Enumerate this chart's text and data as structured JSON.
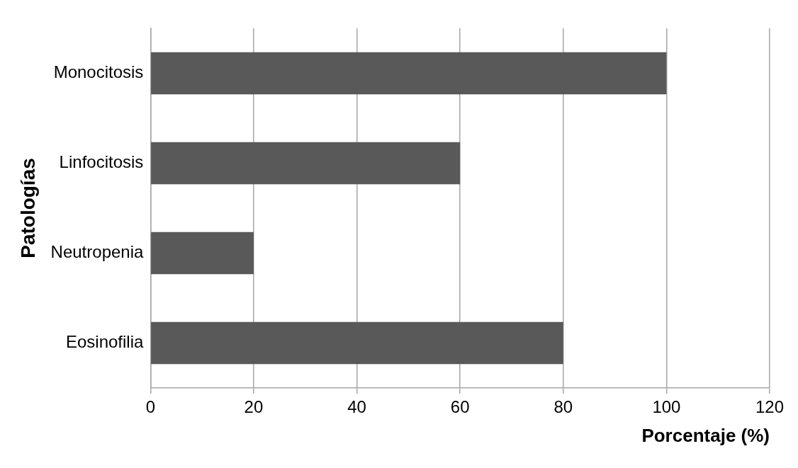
{
  "chart_data": {
    "type": "bar",
    "orientation": "horizontal",
    "xlabel": "Porcentaje (%)",
    "ylabel": "Patologías",
    "categories": [
      "Monocitosis",
      "Linfocitosis",
      "Neutropenia",
      "Eosinofilia"
    ],
    "values": [
      100,
      60,
      20,
      80
    ],
    "color": "#595959",
    "xlim": [
      0,
      120
    ],
    "xticks": [
      0,
      20,
      40,
      60,
      80,
      100,
      120
    ],
    "grid": "x",
    "legend": false
  }
}
